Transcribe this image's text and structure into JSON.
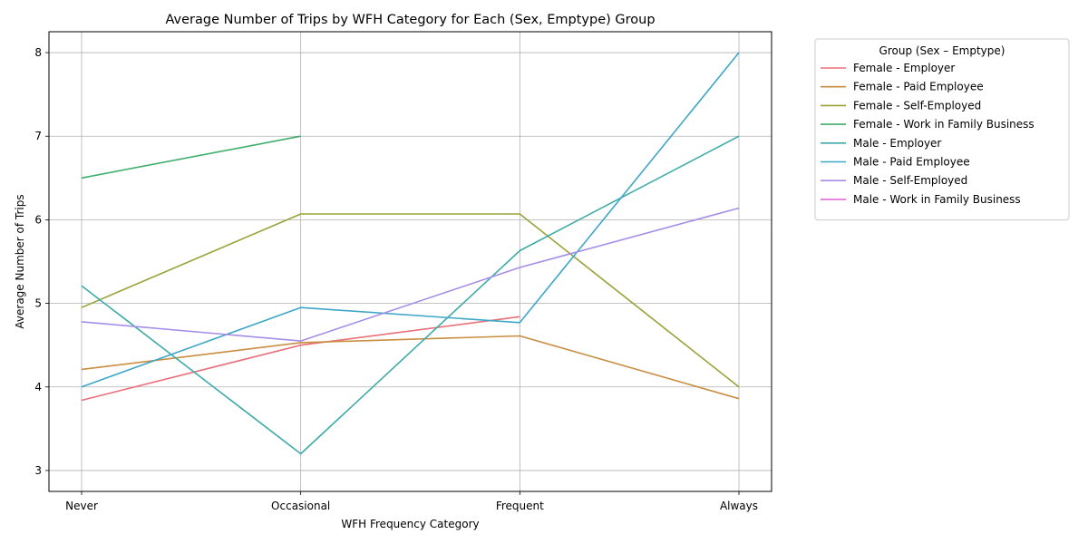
{
  "chart_data": {
    "type": "line",
    "title": "Average Number of Trips by WFH Category for Each (Sex, Emptype) Group",
    "xlabel": "WFH Frequency Category",
    "ylabel": "Average Number of Trips",
    "categories": [
      "Never",
      "Occasional",
      "Frequent",
      "Always"
    ],
    "ylim": [
      2.75,
      8.25
    ],
    "yticks": [
      3,
      4,
      5,
      6,
      7,
      8
    ],
    "grid": true,
    "legend": {
      "title": "Group (Sex – Emptype)",
      "placement": "outside-right"
    },
    "series": [
      {
        "name": "Female - Employer",
        "color": "#e8707a",
        "values": [
          3.84,
          4.5,
          4.84,
          null
        ]
      },
      {
        "name": "Female - Paid Employee",
        "color": "#c98d3f",
        "values": [
          4.21,
          4.53,
          4.61,
          3.86
        ]
      },
      {
        "name": "Female - Self-Employed",
        "color": "#9ba23a",
        "values": [
          4.95,
          6.07,
          6.07,
          4.0
        ]
      },
      {
        "name": "Female - Work in Family Business",
        "color": "#3fae6c",
        "values": [
          6.5,
          7.0,
          null,
          null
        ]
      },
      {
        "name": "Male - Employer",
        "color": "#3eaba8",
        "values": [
          5.21,
          3.2,
          5.63,
          7.0
        ]
      },
      {
        "name": "Male - Paid Employee",
        "color": "#3ea7c8",
        "values": [
          4.0,
          4.95,
          4.77,
          8.0
        ]
      },
      {
        "name": "Male - Self-Employed",
        "color": "#a58de8",
        "values": [
          4.78,
          4.55,
          5.43,
          6.14
        ]
      },
      {
        "name": "Male - Work in Family Business",
        "color": "#e36ad6",
        "values": [
          null,
          null,
          null,
          null
        ]
      }
    ]
  }
}
